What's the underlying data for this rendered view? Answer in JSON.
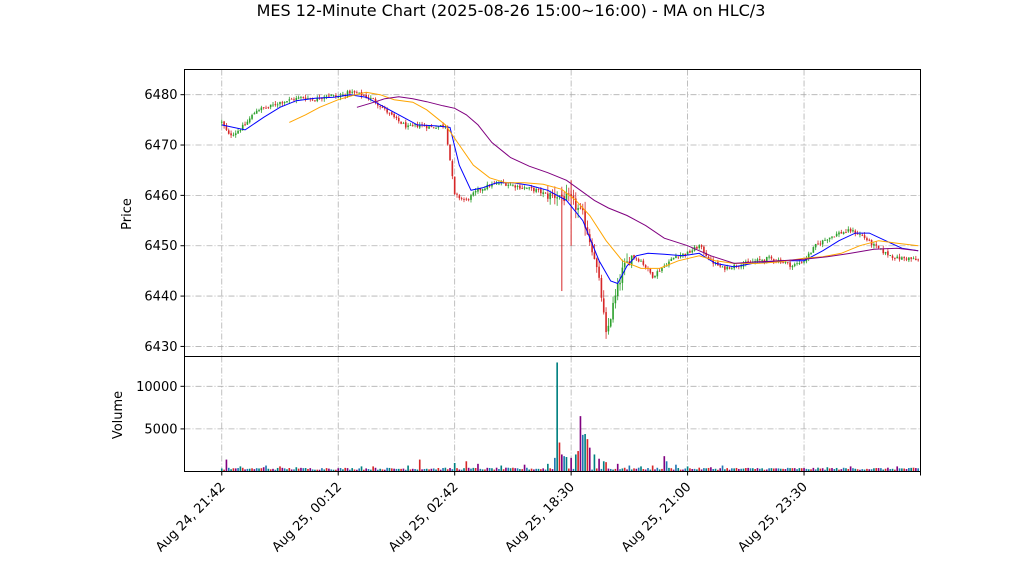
{
  "chart_data": {
    "type": "candlestick",
    "title": "MES 12-Minute Chart (2025-08-26 15:00~16:00) - MA on HLC/3",
    "price_panel": {
      "ylabel": "Price",
      "ylim": [
        6428,
        6485
      ],
      "yticks": [
        6430,
        6440,
        6450,
        6460,
        6470,
        6480
      ],
      "grid": true,
      "candle_up_color": "#2ca02c",
      "candle_down_color": "#d62728",
      "ma_colors": [
        "#0000ff",
        "#ffa500",
        "#800080"
      ],
      "close_path": [
        [
          0,
          6474.5
        ],
        [
          3,
          6472
        ],
        [
          6,
          6472.5
        ],
        [
          10,
          6474
        ],
        [
          15,
          6477
        ],
        [
          20,
          6477.5
        ],
        [
          25,
          6478.5
        ],
        [
          30,
          6479
        ],
        [
          35,
          6479.5
        ],
        [
          40,
          6479
        ],
        [
          45,
          6480
        ],
        [
          50,
          6479.5
        ],
        [
          55,
          6480.5
        ],
        [
          60,
          6480
        ],
        [
          65,
          6479
        ],
        [
          70,
          6477
        ],
        [
          75,
          6475
        ],
        [
          80,
          6473.5
        ],
        [
          85,
          6474
        ],
        [
          90,
          6473.5
        ],
        [
          96,
          6474
        ],
        [
          100,
          6460
        ],
        [
          105,
          6459
        ],
        [
          110,
          6461
        ],
        [
          115,
          6462
        ],
        [
          120,
          6462.5
        ],
        [
          125,
          6462
        ],
        [
          130,
          6461.5
        ],
        [
          135,
          6461
        ],
        [
          140,
          6460
        ],
        [
          145,
          6460
        ],
        [
          150,
          6459
        ],
        [
          155,
          6456
        ],
        [
          160,
          6448
        ],
        [
          163,
          6440
        ],
        [
          165,
          6432
        ],
        [
          168,
          6438
        ],
        [
          172,
          6445
        ],
        [
          176,
          6448
        ],
        [
          180,
          6447
        ],
        [
          185,
          6444
        ],
        [
          190,
          6446
        ],
        [
          195,
          6448
        ],
        [
          200,
          6448.5
        ],
        [
          205,
          6450
        ],
        [
          210,
          6447
        ],
        [
          215,
          6445.5
        ],
        [
          220,
          6446
        ],
        [
          225,
          6446.5
        ],
        [
          230,
          6447
        ],
        [
          235,
          6447.5
        ],
        [
          240,
          6447
        ],
        [
          245,
          6446
        ],
        [
          250,
          6447
        ],
        [
          255,
          6450
        ],
        [
          260,
          6451.5
        ],
        [
          265,
          6452.5
        ],
        [
          270,
          6453
        ],
        [
          275,
          6452
        ],
        [
          280,
          6450
        ],
        [
          285,
          6448.5
        ],
        [
          290,
          6447.5
        ],
        [
          295,
          6447.5
        ],
        [
          299,
          6447
        ]
      ],
      "spikes": [
        [
          146,
          6441
        ],
        [
          146,
          6461
        ],
        [
          150,
          6463
        ]
      ],
      "ma_series": [
        {
          "points": [
            [
              0,
              6474
            ],
            [
              10,
              6473
            ],
            [
              18,
              6475.5
            ],
            [
              25,
              6477.5
            ],
            [
              32,
              6478.8
            ],
            [
              40,
              6479.3
            ],
            [
              48,
              6479.5
            ],
            [
              55,
              6480
            ],
            [
              62,
              6479.5
            ],
            [
              70,
              6477.5
            ],
            [
              78,
              6475.5
            ],
            [
              84,
              6474
            ],
            [
              92,
              6473.8
            ],
            [
              98,
              6473.5
            ],
            [
              102,
              6466
            ],
            [
              107,
              6461
            ],
            [
              112,
              6461.5
            ],
            [
              118,
              6462.5
            ],
            [
              125,
              6462.5
            ],
            [
              132,
              6462
            ],
            [
              140,
              6461
            ],
            [
              148,
              6459
            ],
            [
              155,
              6455
            ],
            [
              162,
              6447
            ],
            [
              167,
              6443
            ],
            [
              170,
              6442.5
            ],
            [
              174,
              6446
            ],
            [
              178,
              6448
            ],
            [
              183,
              6448.5
            ],
            [
              190,
              6448.3
            ],
            [
              198,
              6448
            ],
            [
              205,
              6448.5
            ],
            [
              212,
              6446.5
            ],
            [
              220,
              6445.8
            ],
            [
              228,
              6446.5
            ],
            [
              240,
              6447
            ],
            [
              250,
              6447
            ],
            [
              258,
              6449
            ],
            [
              265,
              6451
            ],
            [
              272,
              6452.5
            ],
            [
              278,
              6452.5
            ],
            [
              285,
              6451
            ],
            [
              292,
              6449.5
            ],
            [
              299,
              6449
            ]
          ]
        },
        {
          "points": [
            [
              29,
              6474.5
            ],
            [
              36,
              6476
            ],
            [
              42,
              6477.5
            ],
            [
              50,
              6479
            ],
            [
              56,
              6479.8
            ],
            [
              62,
              6480.5
            ],
            [
              68,
              6480
            ],
            [
              74,
              6479
            ],
            [
              82,
              6478.5
            ],
            [
              88,
              6477
            ],
            [
              96,
              6474
            ],
            [
              102,
              6470
            ],
            [
              108,
              6466
            ],
            [
              115,
              6463.5
            ],
            [
              122,
              6462.5
            ],
            [
              130,
              6462.5
            ],
            [
              138,
              6462.2
            ],
            [
              146,
              6461.2
            ],
            [
              152,
              6459
            ],
            [
              158,
              6456
            ],
            [
              165,
              6451
            ],
            [
              172,
              6447
            ],
            [
              180,
              6445.5
            ],
            [
              188,
              6445.5
            ],
            [
              196,
              6447
            ],
            [
              205,
              6448
            ],
            [
              212,
              6447
            ],
            [
              220,
              6446.5
            ],
            [
              230,
              6446.5
            ],
            [
              240,
              6446.8
            ],
            [
              250,
              6447.5
            ],
            [
              258,
              6447.8
            ],
            [
              266,
              6448.5
            ],
            [
              274,
              6450
            ],
            [
              282,
              6451
            ],
            [
              290,
              6450.5
            ],
            [
              299,
              6450
            ]
          ]
        },
        {
          "points": [
            [
              58,
              6477.5
            ],
            [
              64,
              6478.3
            ],
            [
              70,
              6479.2
            ],
            [
              76,
              6479.6
            ],
            [
              82,
              6479.2
            ],
            [
              88,
              6478.6
            ],
            [
              95,
              6477.8
            ],
            [
              100,
              6477.3
            ],
            [
              105,
              6476
            ],
            [
              110,
              6474
            ],
            [
              116,
              6470.5
            ],
            [
              124,
              6467.5
            ],
            [
              132,
              6465.8
            ],
            [
              140,
              6464.5
            ],
            [
              148,
              6463
            ],
            [
              154,
              6461
            ],
            [
              160,
              6459
            ],
            [
              166,
              6457.5
            ],
            [
              174,
              6456
            ],
            [
              182,
              6454
            ],
            [
              190,
              6451.5
            ],
            [
              200,
              6450
            ],
            [
              210,
              6448
            ],
            [
              220,
              6446.5
            ],
            [
              230,
              6446.8
            ],
            [
              240,
              6447
            ],
            [
              250,
              6447.3
            ],
            [
              260,
              6447.8
            ],
            [
              270,
              6448.5
            ],
            [
              280,
              6449.3
            ],
            [
              290,
              6449.5
            ],
            [
              299,
              6449
            ]
          ]
        }
      ]
    },
    "volume_panel": {
      "ylabel": "Volume",
      "yticks": [
        5000,
        10000
      ],
      "ylim": [
        0,
        13500
      ],
      "bar_colors": [
        "#008080",
        "#d62728",
        "#800080",
        "#1f77b4"
      ],
      "baseline": 200,
      "spikes": [
        [
          2,
          1400
        ],
        [
          8,
          600
        ],
        [
          18,
          500
        ],
        [
          19,
          700
        ],
        [
          25,
          600
        ],
        [
          32,
          500
        ],
        [
          45,
          400
        ],
        [
          60,
          600
        ],
        [
          65,
          600
        ],
        [
          80,
          700
        ],
        [
          85,
          1400
        ],
        [
          100,
          1000
        ],
        [
          105,
          1200
        ],
        [
          110,
          900
        ],
        [
          120,
          700
        ],
        [
          130,
          800
        ],
        [
          140,
          900
        ],
        [
          143,
          1600
        ],
        [
          144,
          12800
        ],
        [
          145,
          3400
        ],
        [
          146,
          2000
        ],
        [
          147,
          1800
        ],
        [
          148,
          1700
        ],
        [
          150,
          1600
        ],
        [
          152,
          2000
        ],
        [
          153,
          2400
        ],
        [
          154,
          6500
        ],
        [
          155,
          4300
        ],
        [
          156,
          4400
        ],
        [
          157,
          3800
        ],
        [
          158,
          2800
        ],
        [
          160,
          2000
        ],
        [
          162,
          1500
        ],
        [
          164,
          1200
        ],
        [
          165,
          1100
        ],
        [
          170,
          900
        ],
        [
          175,
          700
        ],
        [
          180,
          600
        ],
        [
          185,
          700
        ],
        [
          190,
          1800
        ],
        [
          191,
          1200
        ],
        [
          195,
          800
        ],
        [
          200,
          600
        ],
        [
          210,
          500
        ],
        [
          215,
          700
        ],
        [
          230,
          400
        ],
        [
          260,
          500
        ],
        [
          270,
          600
        ],
        [
          290,
          600
        ]
      ]
    },
    "x_ticks": [
      {
        "index": 0,
        "label": "Aug 24, 21:42"
      },
      {
        "index": 50,
        "label": "Aug 25, 00:12"
      },
      {
        "index": 100,
        "label": "Aug 25, 02:42"
      },
      {
        "index": 150,
        "label": "Aug 25, 18:30"
      },
      {
        "index": 200,
        "label": "Aug 25, 21:00"
      },
      {
        "index": 250,
        "label": "Aug 25, 23:30"
      }
    ],
    "xlim": [
      -16,
      300
    ]
  }
}
